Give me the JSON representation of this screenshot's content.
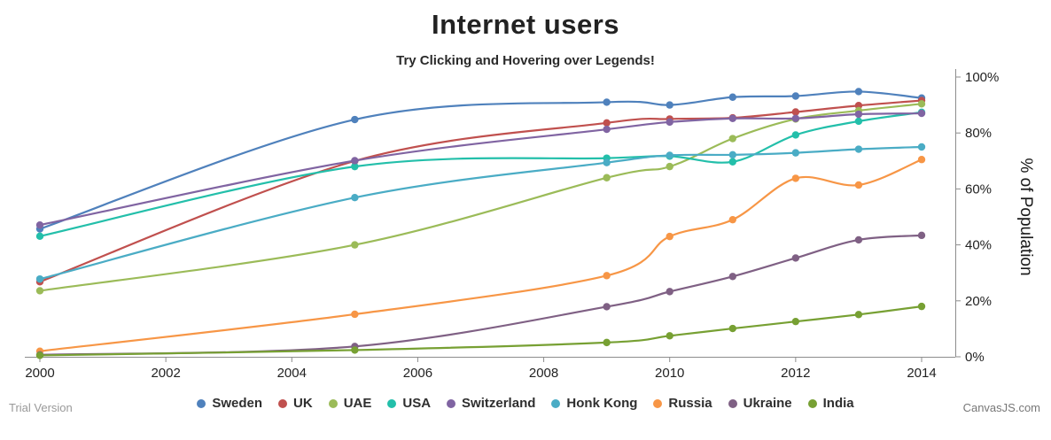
{
  "title": "Internet users",
  "subtitle": "Try Clicking and Hovering over Legends!",
  "footer": {
    "left": "Trial Version",
    "right": "CanvasJS.com"
  },
  "chart_data": {
    "type": "line",
    "smooth": true,
    "x": [
      2000,
      2005,
      2009,
      2010,
      2011,
      2012,
      2013,
      2014
    ],
    "series": [
      {
        "name": "Sweden",
        "color": "#4F81BC",
        "values": [
          45.7,
          84.8,
          91.0,
          90.0,
          92.8,
          93.2,
          94.8,
          92.5
        ]
      },
      {
        "name": "UK",
        "color": "#C0504E",
        "values": [
          26.8,
          70.0,
          83.6,
          85.0,
          85.4,
          87.5,
          89.8,
          91.6
        ]
      },
      {
        "name": "UAE",
        "color": "#9BBB58",
        "values": [
          23.6,
          40.0,
          64.0,
          68.0,
          78.0,
          85.0,
          88.0,
          90.4
        ]
      },
      {
        "name": "USA",
        "color": "#23BFAA",
        "values": [
          43.1,
          68.0,
          71.0,
          71.7,
          69.7,
          79.3,
          84.2,
          87.4
        ]
      },
      {
        "name": "Switzerland",
        "color": "#8064A2",
        "values": [
          47.1,
          70.1,
          81.3,
          83.9,
          85.2,
          85.2,
          86.7,
          87.0
        ]
      },
      {
        "name": "Honk Kong",
        "color": "#4AACC5",
        "values": [
          27.8,
          56.9,
          69.4,
          72.0,
          72.2,
          72.9,
          74.2,
          75.0
        ]
      },
      {
        "name": "Russia",
        "color": "#F79646",
        "values": [
          2.0,
          15.2,
          29.0,
          43.0,
          49.0,
          63.8,
          61.4,
          70.5
        ]
      },
      {
        "name": "Ukraine",
        "color": "#7F6084",
        "values": [
          0.7,
          3.7,
          17.9,
          23.3,
          28.7,
          35.3,
          41.8,
          43.4
        ]
      },
      {
        "name": "India",
        "color": "#77A033",
        "values": [
          0.5,
          2.4,
          5.1,
          7.5,
          10.1,
          12.6,
          15.1,
          18.0
        ]
      }
    ],
    "title": "Internet users",
    "xlabel": "",
    "ylabel": "% of Population",
    "xlim": [
      2000,
      2014
    ],
    "ylim": [
      0,
      100
    ],
    "x_ticks": [
      2000,
      2002,
      2004,
      2006,
      2008,
      2010,
      2012,
      2014
    ],
    "y_ticks": [
      0,
      20,
      40,
      60,
      80,
      100
    ],
    "y_tick_suffix": "%",
    "y_axis_side": "right",
    "grid": false,
    "legend_position": "bottom",
    "axis_color": "#8c8c8c",
    "tick_label_color": "#222222"
  }
}
